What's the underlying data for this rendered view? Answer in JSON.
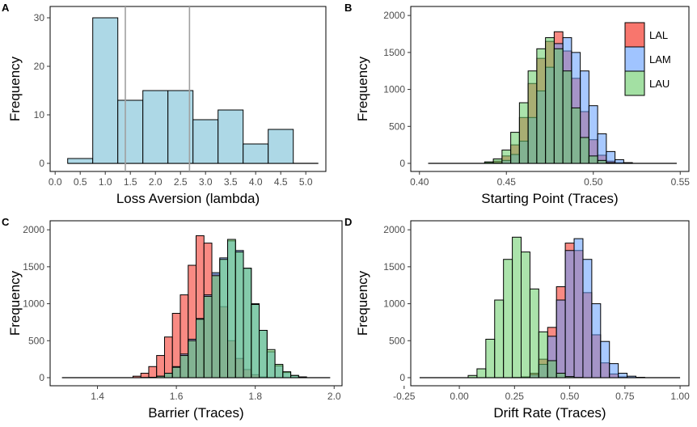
{
  "colors": {
    "LAL": "#f8766d",
    "LAM": "#619cff",
    "LAU": "#66cc66",
    "bar_single": "#add8e6",
    "vline": "#a0a0a0"
  },
  "legend": [
    "LAL",
    "LAM",
    "LAU"
  ],
  "chart_data": [
    {
      "panel": "A",
      "type": "bar",
      "xlabel": "Loss Aversion (lambda)",
      "ylabel": "Frequency",
      "xlim": [
        -0.1,
        5.4
      ],
      "ylim": [
        0,
        32
      ],
      "xticks": [
        0.0,
        0.5,
        1.0,
        1.5,
        2.0,
        2.5,
        3.0,
        3.5,
        4.0,
        4.5,
        5.0
      ],
      "xtick_labels": [
        "0.0",
        "0.5",
        "1.0",
        "1.5",
        "2.0",
        "2.5",
        "3.0",
        "3.5",
        "4.0",
        "4.5",
        "5.0"
      ],
      "yticks": [
        0,
        10,
        20,
        30
      ],
      "ytick_labels": [
        "0",
        "10",
        "20",
        "30"
      ],
      "bins": [
        [
          0.25,
          0.75
        ],
        [
          0.75,
          1.25
        ],
        [
          1.25,
          1.75
        ],
        [
          1.75,
          2.25
        ],
        [
          2.25,
          2.75
        ],
        [
          2.75,
          3.25
        ],
        [
          3.25,
          3.75
        ],
        [
          3.75,
          4.25
        ],
        [
          4.25,
          4.75
        ]
      ],
      "values": [
        1,
        30,
        13,
        15,
        15,
        9,
        11,
        4,
        7
      ],
      "vlines": [
        1.4,
        2.68
      ],
      "baseline": [
        0.25,
        5.25
      ]
    },
    {
      "panel": "B",
      "type": "bar",
      "xlabel": "Starting Point (Traces)",
      "ylabel": "Frequency",
      "xlim": [
        0.395,
        0.555
      ],
      "ylim": [
        0,
        2100
      ],
      "xticks": [
        0.4,
        0.45,
        0.5,
        0.55
      ],
      "xtick_labels": [
        "0.40",
        "0.45",
        "0.50",
        "0.55"
      ],
      "yticks": [
        0,
        500,
        1000,
        1500,
        2000
      ],
      "ytick_labels": [
        "0",
        "500",
        "1000",
        "1500",
        "2000"
      ],
      "bin_start": 0.4375,
      "bin_width": 0.005,
      "series": [
        {
          "name": "LAL",
          "values": [
            10,
            30,
            100,
            250,
            620,
            1080,
            1420,
            1650,
            1780,
            1520,
            1150,
            700,
            320,
            110,
            30,
            8,
            2
          ]
        },
        {
          "name": "LAM",
          "values": [
            2,
            10,
            40,
            120,
            300,
            620,
            980,
            1300,
            1620,
            1700,
            1500,
            1250,
            780,
            400,
            160,
            50,
            10
          ]
        },
        {
          "name": "LAU",
          "values": [
            20,
            60,
            180,
            420,
            820,
            1250,
            1550,
            1700,
            1550,
            1250,
            750,
            350,
            100,
            40,
            10,
            2,
            0
          ]
        }
      ],
      "baseline": [
        0.405,
        0.548
      ]
    },
    {
      "panel": "C",
      "type": "bar",
      "xlabel": "Barrier (Traces)",
      "ylabel": "Frequency",
      "xlim": [
        1.28,
        2.02
      ],
      "ylim": [
        0,
        2100
      ],
      "xticks": [
        1.4,
        1.6,
        1.8,
        2.0
      ],
      "xtick_labels": [
        "1.4",
        "1.6",
        "1.8",
        "2.0"
      ],
      "yticks": [
        0,
        500,
        1000,
        1500,
        2000
      ],
      "ytick_labels": [
        "0",
        "500",
        "1000",
        "1500",
        "2000"
      ],
      "bin_start": 1.49,
      "bin_width": 0.02,
      "series": [
        {
          "name": "LAL",
          "values": [
            20,
            60,
            150,
            300,
            550,
            870,
            1120,
            1520,
            1920,
            1820,
            1400,
            960,
            500,
            260,
            110,
            40,
            10,
            3
          ]
        },
        {
          "name": "LAM",
          "values": [
            0,
            2,
            5,
            20,
            60,
            150,
            320,
            520,
            800,
            1120,
            1420,
            1620,
            1850,
            1720,
            1480,
            1000,
            640,
            350,
            160,
            70,
            30,
            10
          ]
        },
        {
          "name": "LAU",
          "values": [
            0,
            2,
            5,
            20,
            60,
            140,
            300,
            500,
            790,
            1100,
            1380,
            1600,
            1870,
            1700,
            1480,
            990,
            640,
            380,
            180,
            80,
            30,
            10
          ]
        }
      ],
      "baseline": [
        1.31,
        1.99
      ]
    },
    {
      "panel": "D",
      "type": "bar",
      "xlabel": "Drift Rate (Traces)",
      "ylabel": "Frequency",
      "xlim": [
        -0.22,
        1.04
      ],
      "ylim": [
        0,
        2100
      ],
      "xticks": [
        -0.25,
        0.0,
        0.25,
        0.5,
        0.75,
        1.0
      ],
      "xtick_labels": [
        "-0.25",
        "0.00",
        "0.25",
        "0.50",
        "0.75",
        "1.00"
      ],
      "yticks": [
        0,
        500,
        1000,
        1500,
        2000
      ],
      "ytick_labels": [
        "0",
        "500",
        "1000",
        "1500",
        "2000"
      ],
      "bin_start": 0.04,
      "bin_width": 0.04,
      "series": [
        {
          "name": "LAL",
          "values": [
            0,
            0,
            0,
            0,
            0,
            2,
            10,
            60,
            250,
            680,
            1230,
            1820,
            1720,
            1150,
            580,
            200,
            50,
            10,
            2
          ]
        },
        {
          "name": "LAM",
          "values": [
            0,
            0,
            0,
            0,
            0,
            2,
            8,
            40,
            180,
            560,
            1050,
            1720,
            1880,
            1600,
            1000,
            490,
            190,
            60,
            20,
            5
          ]
        },
        {
          "name": "LAU",
          "values": [
            30,
            120,
            520,
            1050,
            1600,
            1900,
            1700,
            1200,
            620,
            230,
            60,
            15,
            3
          ]
        }
      ],
      "baseline": [
        -0.18,
        1.0
      ]
    }
  ]
}
